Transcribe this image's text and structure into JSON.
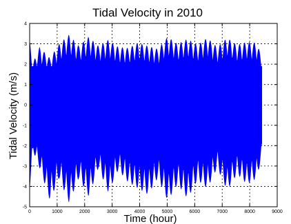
{
  "chart_data": {
    "type": "area",
    "title": "Tidal Velocity in 2010",
    "xlabel": "Time (hour)",
    "ylabel": "Tidal Velocity (m/s)",
    "xlim": [
      0,
      9000
    ],
    "ylim": [
      -5,
      4
    ],
    "x_ticks": [
      0,
      1000,
      2000,
      3000,
      4000,
      5000,
      6000,
      7000,
      8000,
      9000
    ],
    "x_tick_labels": [
      "0",
      "1000",
      "2000",
      "3000",
      "4000",
      "5000",
      "6000",
      "7000",
      "8000",
      "9000"
    ],
    "y_ticks": [
      -5,
      -4,
      -3,
      -2,
      -1,
      0,
      1,
      2,
      3,
      4
    ],
    "y_tick_labels": [
      "-5",
      "-4",
      "-3",
      "-2",
      "-1",
      "0",
      "1",
      "2",
      "3",
      "4"
    ],
    "grid": true,
    "color": "#0000ff",
    "series": [
      {
        "name": "",
        "x": [
          0,
          130,
          360,
          740,
          1070,
          1430,
          1790,
          2150,
          2500,
          2860,
          3220,
          3580,
          3940,
          4300,
          4660,
          5020,
          5380,
          5740,
          6100,
          6460,
          6820,
          7180,
          7540,
          7900,
          8260,
          8450
        ],
        "upper": [
          3.2,
          2.1,
          2.85,
          2.3,
          3.0,
          3.45,
          2.9,
          3.35,
          2.9,
          3.2,
          2.85,
          2.8,
          3.05,
          2.9,
          2.75,
          3.35,
          3.0,
          3.25,
          2.95,
          3.3,
          2.85,
          3.3,
          2.95,
          3.1,
          3.05,
          2.3
        ],
        "lower": [
          -4.2,
          -2.3,
          -3.1,
          -4.7,
          -3.6,
          -4.8,
          -3.6,
          -4.5,
          -3.1,
          -4.3,
          -3.2,
          -3.8,
          -4.1,
          -4.4,
          -3.6,
          -4.7,
          -3.9,
          -4.6,
          -3.7,
          -4.1,
          -3.1,
          -4.2,
          -3.4,
          -3.9,
          -3.6,
          -2.5
        ]
      }
    ]
  }
}
